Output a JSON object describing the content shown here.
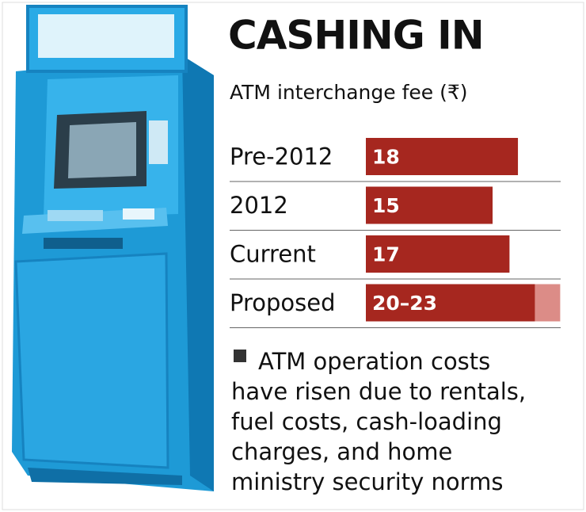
{
  "chart_data": {
    "type": "bar",
    "orientation": "horizontal",
    "title": "CASHING IN",
    "subtitle": "ATM interchange fee (₹)",
    "categories": [
      "Pre-2012",
      "2012",
      "Current",
      "Proposed"
    ],
    "values": [
      18,
      15,
      17,
      20
    ],
    "range_end": [
      null,
      null,
      null,
      23
    ],
    "value_labels": [
      "18",
      "15",
      "17",
      "20–23"
    ],
    "color": "#a6271f",
    "range_color": "#dc8c87",
    "note": [
      "ATM operation costs",
      "have risen due to rentals,",
      "fuel costs, cash-loading",
      "charges, and home",
      "ministry security norms"
    ]
  }
}
